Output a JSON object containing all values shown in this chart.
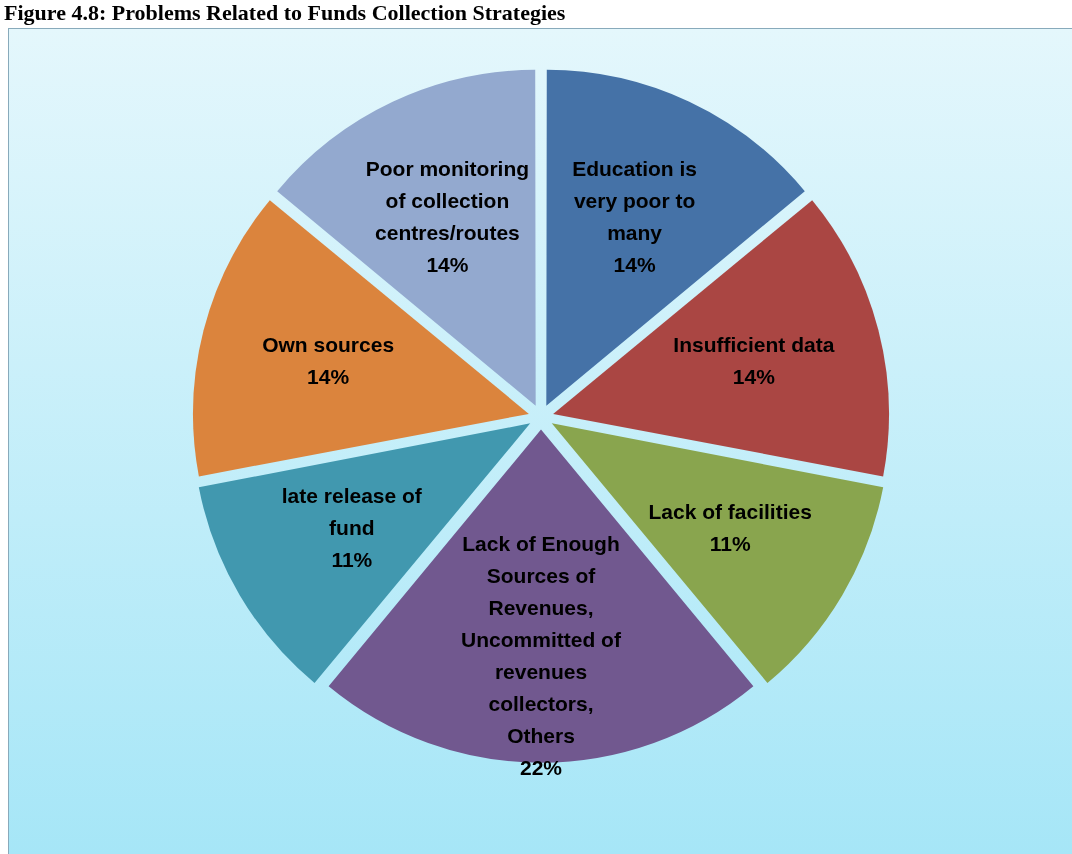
{
  "chart_data": {
    "type": "pie",
    "title": "Figure 4.8: Problems Related to Funds Collection Strategies",
    "categories": [
      "Education is very poor to many",
      "Insufficient data",
      "Lack of facilities",
      "Lack of Enough Sources of Revenues, Uncommitted of revenues collectors, Others",
      "late release of fund",
      "Own sources",
      "Poor monitoring of collection centres/routes"
    ],
    "values": [
      14,
      14,
      11,
      22,
      11,
      14,
      14
    ],
    "value_labels": [
      "14%",
      "14%",
      "11%",
      "22%",
      "11%",
      "14%",
      "14%"
    ],
    "colors": [
      "#4572a7",
      "#aa4643",
      "#89a54e",
      "#71588f",
      "#4198af",
      "#db843d",
      "#93a9cf"
    ],
    "legend": false
  }
}
